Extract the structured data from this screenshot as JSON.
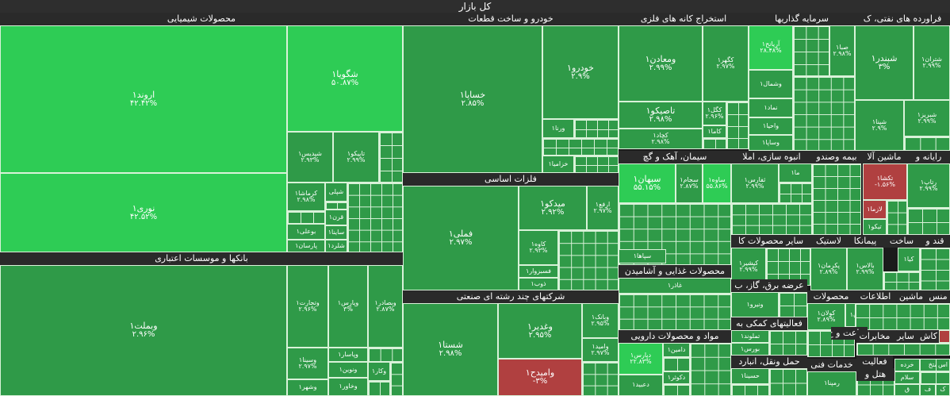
{
  "title": "کل بازار",
  "colors": {
    "strong_up": "#2ecc55",
    "up": "#2f9a48",
    "mid_up": "#3aa852",
    "down": "#b04040",
    "gray": "#3a4a52",
    "header_bg": "#2a2a2a",
    "border": "#d9f2d9"
  },
  "chart_data": {
    "type": "treemap",
    "title": "کل بازار",
    "sectors": [
      {
        "name": "محصولات شیمیایی"
      },
      {
        "name": "بانکها و موسسات اعتباری"
      },
      {
        "name": "خودرو و ساخت قطعات"
      },
      {
        "name": "فلزات اساسی"
      },
      {
        "name": "شرکتهای چند رشته ای صنعتی"
      },
      {
        "name": "استخراج کانه های فلزی"
      },
      {
        "name": "سرمایه گذاریها"
      },
      {
        "name": "فراورده های نفتی، ک"
      },
      {
        "name": "سیمان، آهک و گچ"
      },
      {
        "name": "انبوه سازی، املا"
      },
      {
        "name": "بیمه وصندو"
      },
      {
        "name": "ماشین آلا"
      },
      {
        "name": "رایانه و"
      },
      {
        "name": "سایر محصولات کا"
      },
      {
        "name": "لاستیک"
      },
      {
        "name": "پیمانکا"
      },
      {
        "name": "ساخت"
      },
      {
        "name": "قند و"
      },
      {
        "name": "محصولات غذایی و آشامیدن"
      },
      {
        "name": "عرضه برق، گاز، ب"
      },
      {
        "name": "مواد و محصولات دارویی"
      },
      {
        "name": "فعالیتهای کمکی به"
      },
      {
        "name": "حمل ونقل، انبارد"
      },
      {
        "name": "محصولات"
      },
      {
        "name": "اطلاعات"
      },
      {
        "name": "ماشین"
      },
      {
        "name": "منس"
      },
      {
        "name": "زراعت و خ"
      },
      {
        "name": "خدمات فنی"
      },
      {
        "name": "کاش"
      },
      {
        "name": "سایر"
      },
      {
        "name": "مخابرات"
      },
      {
        "name": "فعالیت"
      },
      {
        "name": "هتل و"
      }
    ],
    "stocks": [
      {
        "name": "اروند۱",
        "change": "۴۲.۴۲%",
        "color": "strong_up"
      },
      {
        "name": "نوری۱",
        "change": "۴۲.۵۲%",
        "color": "strong_up"
      },
      {
        "name": "شگویا۱",
        "change": "۵۰.۸۷%",
        "color": "strong_up"
      },
      {
        "name": "شپدیس۱",
        "change": "۲.۹۳%",
        "color": "up"
      },
      {
        "name": "تاپیکو۱",
        "change": "۲.۹۹%",
        "color": "up"
      },
      {
        "name": "کرماشا۱",
        "change": "۲.۹۸%",
        "color": "up"
      },
      {
        "name": "شپلی",
        "change": "",
        "color": "up"
      },
      {
        "name": "قرن۱",
        "change": "",
        "color": "up"
      },
      {
        "name": "بوعلی۱",
        "change": "",
        "color": "up"
      },
      {
        "name": "ساینا۱",
        "change": "",
        "color": "up"
      },
      {
        "name": "پارسان۱",
        "change": "",
        "color": "up"
      },
      {
        "name": "شلرد۱",
        "change": "",
        "color": "up"
      },
      {
        "name": "وبملت۱",
        "change": "۲.۹۶%",
        "color": "up"
      },
      {
        "name": "وتجارت۱",
        "change": "۲.۹۶%",
        "color": "up"
      },
      {
        "name": "وپارس۱",
        "change": "۳%",
        "color": "up"
      },
      {
        "name": "وبصادر۱",
        "change": "۲.۸۷%",
        "color": "up"
      },
      {
        "name": "وپاسار۱",
        "change": "",
        "color": "up"
      },
      {
        "name": "وسینا۱",
        "change": "۲.۹۷%",
        "color": "up"
      },
      {
        "name": "ونوین۱",
        "change": "",
        "color": "up"
      },
      {
        "name": "وکار۱",
        "change": "",
        "color": "up"
      },
      {
        "name": "وخاور۱",
        "change": "",
        "color": "up"
      },
      {
        "name": "وشهر۱",
        "change": "",
        "color": "up"
      },
      {
        "name": "خساپا۱",
        "change": "۲.۸۵%",
        "color": "up"
      },
      {
        "name": "خودرو۱",
        "change": "۲.۹%",
        "color": "up"
      },
      {
        "name": "ورنا۱",
        "change": "",
        "color": "up"
      },
      {
        "name": "خزامیا۱",
        "change": "",
        "color": "up"
      },
      {
        "name": "فملی۱",
        "change": "۲.۹۷%",
        "color": "up"
      },
      {
        "name": "میدکو۱",
        "change": "۲.۹۲%",
        "color": "up"
      },
      {
        "name": "ارفع۱",
        "change": "۲.۹۷%",
        "color": "up"
      },
      {
        "name": "کاوه۱",
        "change": "۲.۹۳%",
        "color": "up"
      },
      {
        "name": "فسبزوار۱",
        "change": "",
        "color": "up"
      },
      {
        "name": "ذوب۱",
        "change": "",
        "color": "up"
      },
      {
        "name": "شستا۱",
        "change": "۲.۹۸%",
        "color": "up"
      },
      {
        "name": "وغدیر۱",
        "change": "۲.۹۵%",
        "color": "up"
      },
      {
        "name": "وبانک۱",
        "change": "۲.۹۵%",
        "color": "up"
      },
      {
        "name": "وامید۱",
        "change": "۲.۹۷%",
        "color": "up"
      },
      {
        "name": "وامیدح۱",
        "change": "-۳%",
        "color": "down"
      },
      {
        "name": "ومعادن۱",
        "change": "۲.۹۹%",
        "color": "up"
      },
      {
        "name": "کگهر۱",
        "change": "۲.۹۷%",
        "color": "up"
      },
      {
        "name": "تاصیکو۱",
        "change": "۲.۹۸%",
        "color": "up"
      },
      {
        "name": "کگل۱",
        "change": "۲.۹۶%",
        "color": "up"
      },
      {
        "name": "کچاد۱",
        "change": "۲.۹۸%",
        "color": "up"
      },
      {
        "name": "کاما۱",
        "change": "",
        "color": "up"
      },
      {
        "name": "آریانح۱",
        "change": "۲۸.۴۸%",
        "color": "strong_up"
      },
      {
        "name": "صبا۱",
        "change": "۲.۹۸%",
        "color": "up"
      },
      {
        "name": "وشمال۱",
        "change": "",
        "color": "up"
      },
      {
        "name": "نماد۱",
        "change": "",
        "color": "up"
      },
      {
        "name": "واحیا۱",
        "change": "",
        "color": "up"
      },
      {
        "name": "وساپا۱",
        "change": "",
        "color": "up"
      },
      {
        "name": "شبندر۱",
        "change": "۳%",
        "color": "up"
      },
      {
        "name": "شتران۱",
        "change": "۲.۹۹%",
        "color": "up"
      },
      {
        "name": "شپنا۱",
        "change": "۲.۹%",
        "color": "up"
      },
      {
        "name": "شبریز۱",
        "change": "۲.۹۹%",
        "color": "up"
      },
      {
        "name": "سبهان۱",
        "change": "۵۵.۱۵%",
        "color": "strong_up"
      },
      {
        "name": "سجام۱",
        "change": "۲.۸۷%",
        "color": "up"
      },
      {
        "name": "ساوه۱",
        "change": "۵۵.۸۶%",
        "color": "strong_up"
      },
      {
        "name": "سپاها۱",
        "change": "",
        "color": "up"
      },
      {
        "name": "ثفارس۱",
        "change": "۲.۹۹%",
        "color": "up"
      },
      {
        "name": "ما۱",
        "change": "",
        "color": "up"
      },
      {
        "name": "تکشا۱",
        "change": "-۱.۵۶%",
        "color": "down"
      },
      {
        "name": "رتاپ۱",
        "change": "۲.۹۹%",
        "color": "up"
      },
      {
        "name": "لازما۱",
        "change": "",
        "color": "down"
      },
      {
        "name": "تیکو۱",
        "change": "",
        "color": "up"
      },
      {
        "name": "کیشیر۱",
        "change": "۲.۹۹%",
        "color": "up"
      },
      {
        "name": "پکرمان۱",
        "change": "۲.۸۹%",
        "color": "up"
      },
      {
        "name": "بالاس۱",
        "change": "۲.۹۹%",
        "color": "up"
      },
      {
        "name": "کیا۱",
        "change": "",
        "color": "up"
      },
      {
        "name": "غاذر۱",
        "change": "",
        "color": "up"
      },
      {
        "name": "ونیرو۱",
        "change": "",
        "color": "up"
      },
      {
        "name": "کولان۱",
        "change": "۲.۸۹%",
        "color": "up"
      },
      {
        "name": "اوان۱",
        "change": "",
        "color": "up"
      },
      {
        "name": "دپارس۱",
        "change": "۲۲.۸۳%",
        "color": "strong_up"
      },
      {
        "name": "دامین۱",
        "change": "",
        "color": "up"
      },
      {
        "name": "دکوثر۱",
        "change": "",
        "color": "up"
      },
      {
        "name": "دعبید۱",
        "change": "",
        "color": "up"
      },
      {
        "name": "تملوند۱",
        "change": "",
        "color": "up"
      },
      {
        "name": "بورس۱",
        "change": "",
        "color": "up"
      },
      {
        "name": "حسینا۱",
        "change": "",
        "color": "up"
      },
      {
        "name": "رمپنا۱",
        "change": "",
        "color": "up"
      },
      {
        "name": "استخ",
        "change": "",
        "color": "up"
      },
      {
        "name": "خرده",
        "change": "",
        "color": "up"
      },
      {
        "name": "اس",
        "change": "",
        "color": "up"
      },
      {
        "name": "سلام",
        "change": "",
        "color": "up"
      },
      {
        "name": "ف",
        "change": "",
        "color": "up"
      },
      {
        "name": "ک",
        "change": "",
        "color": "up"
      },
      {
        "name": "ق",
        "change": "",
        "color": "up"
      }
    ]
  }
}
